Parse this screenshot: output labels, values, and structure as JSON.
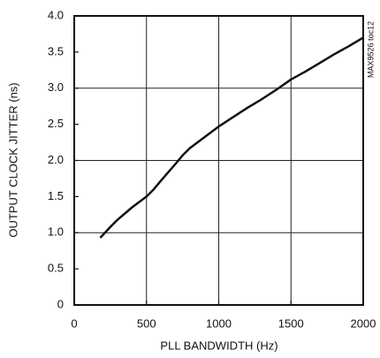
{
  "chart_data": {
    "type": "line",
    "x_label": "PLL BANDWIDTH (Hz)",
    "y_label": "OUTPUT CLOCK JITTER (ns)",
    "annotation": "MAX9526 toc12",
    "xlim": [
      0,
      2000
    ],
    "ylim": [
      0,
      4
    ],
    "xticks": [
      0,
      500,
      1000,
      1500,
      2000
    ],
    "yticks": [
      0,
      0.5,
      {
        "value": 1,
        "label": "1.0"
      },
      1.5,
      {
        "value": 2,
        "label": "2.0"
      },
      2.5,
      {
        "value": 3,
        "label": "3.0"
      },
      3.5,
      {
        "value": 4,
        "label": "4.0"
      }
    ],
    "xgrid": [
      500,
      1000,
      1500
    ],
    "ygrid": [
      1,
      2,
      3
    ],
    "color": "#111111",
    "x": [
      180,
      250,
      300,
      400,
      500,
      550,
      600,
      700,
      750,
      800,
      900,
      1000,
      1100,
      1200,
      1300,
      1400,
      1500,
      1600,
      1700,
      1800,
      1900,
      2000
    ],
    "values": [
      0.93,
      1.08,
      1.18,
      1.35,
      1.5,
      1.6,
      1.72,
      1.95,
      2.07,
      2.17,
      2.32,
      2.47,
      2.6,
      2.73,
      2.85,
      2.98,
      3.12,
      3.23,
      3.35,
      3.47,
      3.58,
      3.7
    ]
  }
}
